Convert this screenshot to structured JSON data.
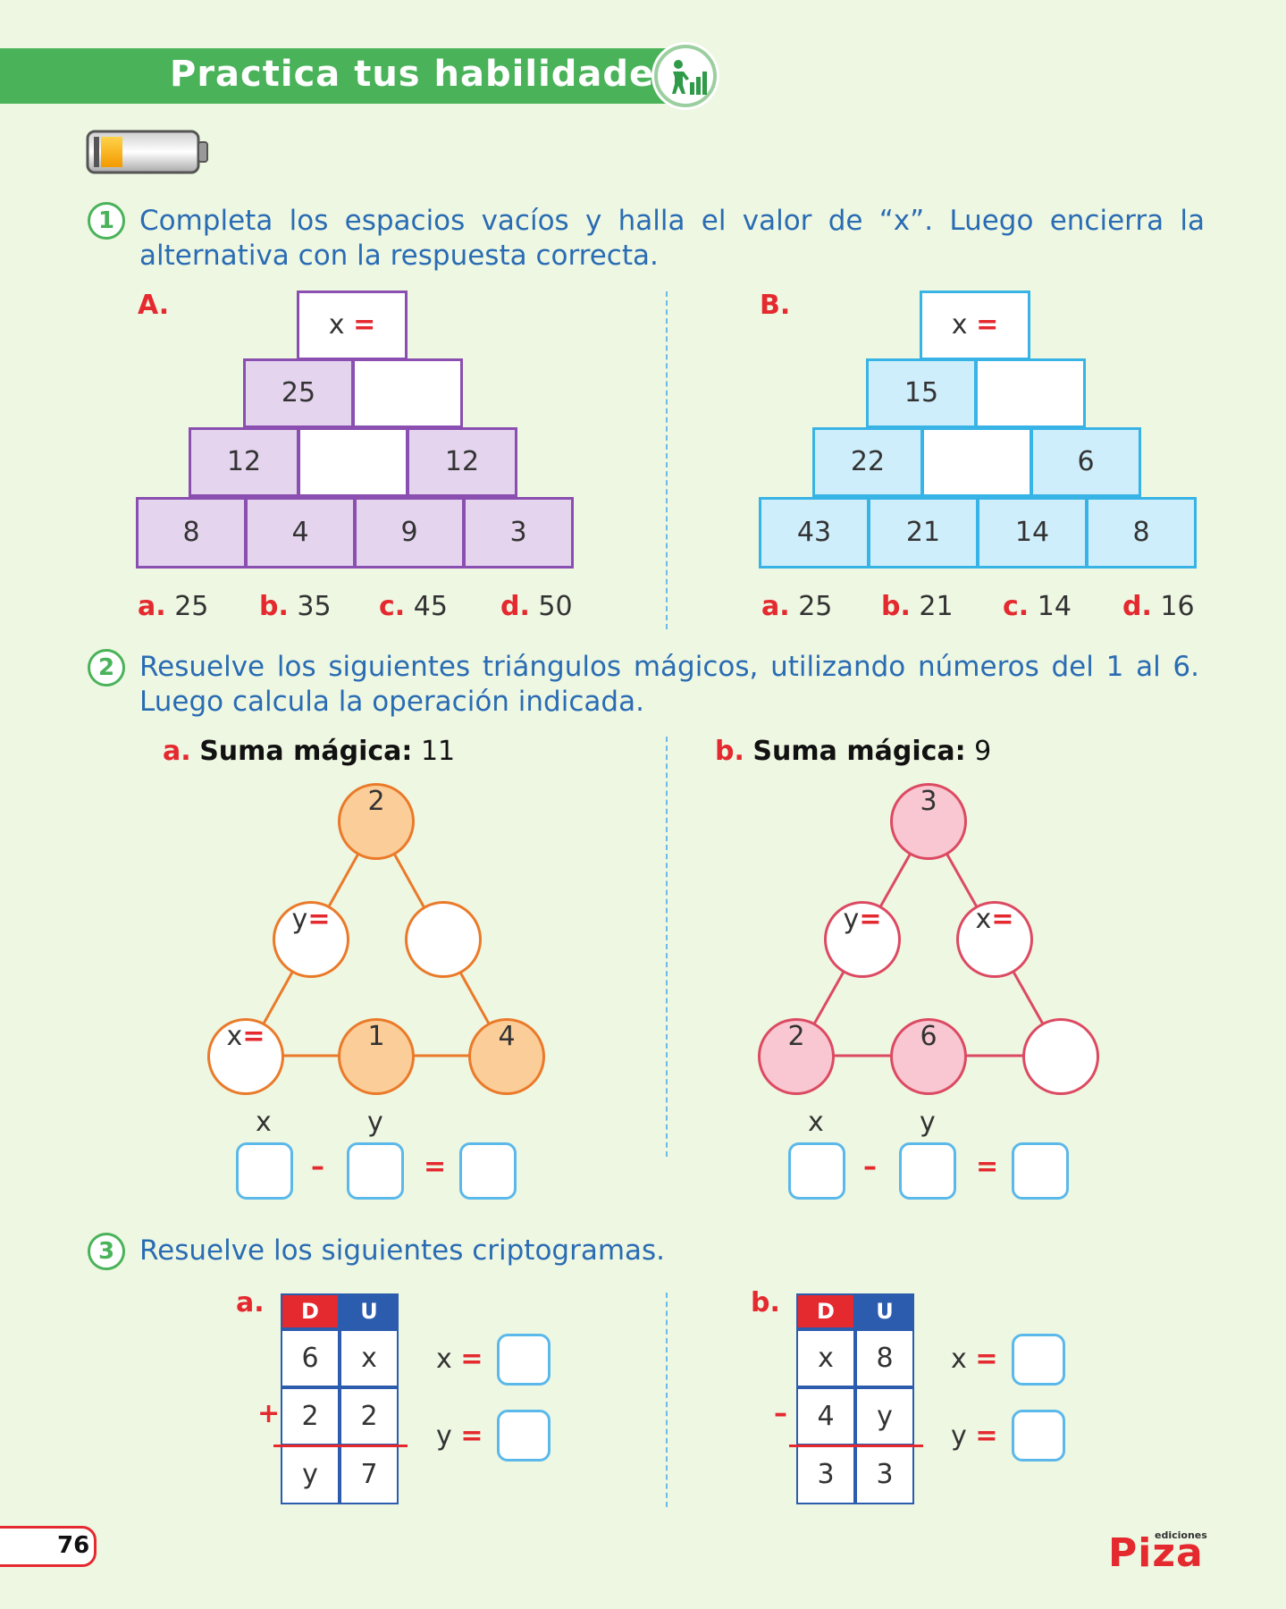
{
  "header": {
    "title": "Practica tus habilidades"
  },
  "q1": {
    "num": "1",
    "text_line1": "Completa los espacios vacíos y halla el valor de “x”. Luego encierra la",
    "text_line2": "alternativa con la respuesta correcta.",
    "A": {
      "label": "A.",
      "top": {
        "var": "x",
        "eq": "="
      },
      "row2": [
        "25",
        ""
      ],
      "row3": [
        "12",
        "",
        "12"
      ],
      "row4": [
        "8",
        "4",
        "9",
        "3"
      ],
      "options": [
        {
          "k": "a.",
          "v": "25"
        },
        {
          "k": "b.",
          "v": "35"
        },
        {
          "k": "c.",
          "v": "45"
        },
        {
          "k": "d.",
          "v": "50"
        }
      ]
    },
    "B": {
      "label": "B.",
      "top": {
        "var": "x",
        "eq": "="
      },
      "row2": [
        "15",
        ""
      ],
      "row3": [
        "22",
        "",
        "6"
      ],
      "row4": [
        "43",
        "21",
        "14",
        "8"
      ],
      "options": [
        {
          "k": "a.",
          "v": "25"
        },
        {
          "k": "b.",
          "v": "21"
        },
        {
          "k": "c.",
          "v": "14"
        },
        {
          "k": "d.",
          "v": "16"
        }
      ]
    }
  },
  "q2": {
    "num": "2",
    "text_line1": "Resuelve los siguientes triángulos mágicos, utilizando números del 1 al 6.",
    "text_line2": "Luego calcula la operación indicada.",
    "a": {
      "label": "a.",
      "title": "Suma mágica:",
      "sum": "11",
      "top": "2",
      "left_mid": "y",
      "right_mid": "",
      "bottom_left": "x",
      "bottom_mid": "1",
      "bottom_right": "4",
      "op_x": "x",
      "op_y": "y",
      "minus": "–",
      "equals": "="
    },
    "b": {
      "label": "b.",
      "title": "Suma mágica:",
      "sum": "9",
      "top": "3",
      "left_mid": "y",
      "right_mid": "x",
      "bottom_left": "2",
      "bottom_mid": "6",
      "bottom_right": "",
      "op_x": "x",
      "op_y": "y",
      "minus": "–",
      "equals": "="
    }
  },
  "q3": {
    "num": "3",
    "text": "Resuelve los siguientes criptogramas.",
    "a": {
      "label": "a.",
      "col_d": "D",
      "col_u": "U",
      "row1": [
        "6",
        "x"
      ],
      "op": "+",
      "row2": [
        "2",
        "2"
      ],
      "row3": [
        "y",
        "7"
      ],
      "var_x": "x",
      "var_y": "y",
      "eq": "="
    },
    "b": {
      "label": "b.",
      "col_d": "D",
      "col_u": "U",
      "row1": [
        "x",
        "8"
      ],
      "op": "–",
      "row2": [
        "4",
        "y"
      ],
      "row3": [
        "3",
        "3"
      ],
      "var_x": "x",
      "var_y": "y",
      "eq": "="
    }
  },
  "footer": {
    "page": "76",
    "brand_small": "ediciones",
    "brand": "Piza"
  }
}
